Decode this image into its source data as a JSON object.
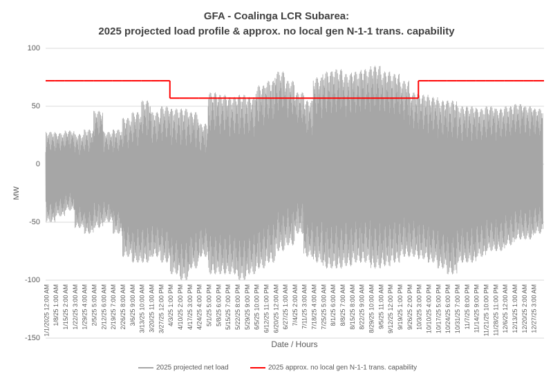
{
  "chart_data": {
    "type": "line",
    "title": "GFA - Coalinga LCR Subarea:",
    "subtitle": "2025 projected load profile & approx. no local gen N-1-1 trans. capability",
    "x_label": "Date / Hours",
    "y_label": "MW",
    "categories": [
      "1/1/2025 12:00 AM",
      "1/8/25 1:00 AM",
      "1/15/25 2:00 AM",
      "1/22/25 3:00 AM",
      "1/29/25 4:00 AM",
      "2/5/25 5:00 AM",
      "2/12/25 6:00 AM",
      "2/19/25 7:00 AM",
      "2/26/25 8:00 AM",
      "3/6/25 9:00 AM",
      "3/13/25 10:00 AM",
      "3/20/25 11:00 AM",
      "3/27/25 12:00 PM",
      "4/3/25 1:00 PM",
      "4/10/25 2:00 PM",
      "4/17/25 3:00 PM",
      "4/24/25 4:00 PM",
      "5/1/25 5:00 PM",
      "5/8/25 6:00 PM",
      "5/15/25 7:00 PM",
      "5/22/25 8:00 PM",
      "5/29/25 9:00 PM",
      "6/5/25 10:00 PM",
      "6/12/25 11:00 PM",
      "6/20/25 12:00 AM",
      "6/27/25 1:00 AM",
      "7/4/25 2:00 AM",
      "7/11/25 3:00 AM",
      "7/18/25 4:00 AM",
      "7/25/25 5:00 AM",
      "8/1/25 6:00 AM",
      "8/8/25 7:00 AM",
      "8/15/25 8:00 AM",
      "8/22/25 9:00 AM",
      "8/29/25 10:00 AM",
      "9/5/25 11:00 AM",
      "9/12/25 12:00 PM",
      "9/19/25 1:00 PM",
      "9/26/25 2:00 PM",
      "10/3/25 3:00 PM",
      "10/10/25 4:00 PM",
      "10/17/25 5:00 PM",
      "10/24/25 6:00 PM",
      "10/31/25 7:00 PM",
      "11/7/25 8:00 PM",
      "11/14/25 9:00 PM",
      "11/21/25 10:00 PM",
      "11/28/25 11:00 PM",
      "12/6/25 12:00 AM",
      "12/13/25 1:00 AM",
      "12/20/25 2:00 AM",
      "12/27/25 3:00 AM"
    ],
    "series": [
      {
        "name": "2025 projected net load",
        "color": "#a6a6a6",
        "high": [
          28,
          27,
          29,
          26,
          30,
          46,
          28,
          30,
          40,
          45,
          55,
          45,
          50,
          48,
          48,
          45,
          35,
          62,
          60,
          58,
          60,
          58,
          68,
          72,
          80,
          72,
          62,
          55,
          75,
          80,
          82,
          78,
          80,
          82,
          85,
          80,
          78,
          72,
          62,
          60,
          58,
          55,
          55,
          50,
          50,
          48,
          50,
          48,
          50,
          52,
          50,
          48
        ],
        "low": [
          -50,
          -45,
          -40,
          -55,
          -60,
          -55,
          -50,
          -60,
          -80,
          -85,
          -85,
          -80,
          -85,
          -95,
          -100,
          -90,
          -80,
          -95,
          -95,
          -95,
          -100,
          -95,
          -90,
          -85,
          -75,
          -70,
          -60,
          -80,
          -85,
          -90,
          -90,
          -88,
          -85,
          -85,
          -90,
          -88,
          -85,
          -80,
          -80,
          -82,
          -85,
          -90,
          -95,
          -85,
          -85,
          -80,
          -75,
          -75,
          -70,
          -65,
          -65,
          -60
        ]
      },
      {
        "name": "2025 approx. no local gen N-1-1 trans. capability",
        "color": "#ff0000",
        "values": [
          72,
          72,
          72,
          72,
          72,
          72,
          72,
          72,
          72,
          72,
          72,
          72,
          72,
          57,
          57,
          57,
          57,
          57,
          57,
          57,
          57,
          57,
          57,
          57,
          57,
          57,
          57,
          57,
          57,
          57,
          57,
          57,
          57,
          57,
          57,
          57,
          57,
          57,
          57,
          72,
          72,
          72,
          72,
          72,
          72,
          72,
          72,
          72,
          72,
          72,
          72,
          72
        ]
      }
    ],
    "ylim": [
      -150,
      100
    ],
    "yticks": [
      -150,
      -100,
      -50,
      0,
      50,
      100
    ],
    "grid": true
  }
}
